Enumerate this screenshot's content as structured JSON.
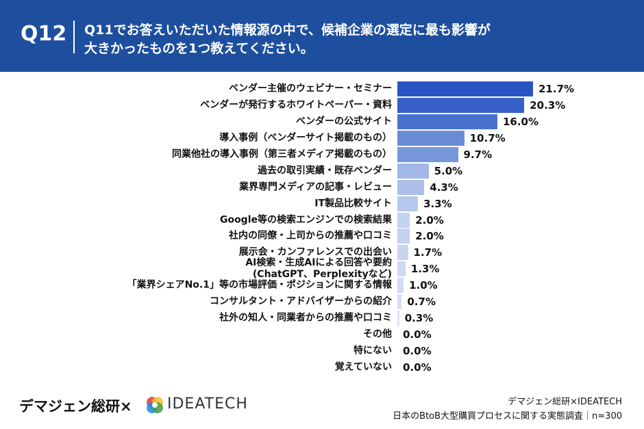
{
  "chart_data": {
    "type": "bar",
    "orientation": "horizontal",
    "question_label": "Q12",
    "title": "Q11でお答えいただいた情報源の中で、候補企業の選定に最も影響が\n大きかったものを1つ教えてください。",
    "categories": [
      "ベンダー主催のウェビナー・セミナー",
      "ベンダーが発行するホワイトペーパー・資料",
      "ベンダーの公式サイト",
      "導入事例（ベンダーサイト掲載のもの）",
      "同業他社の導入事例（第三者メディア掲載のもの）",
      "過去の取引実績・既存ベンダー",
      "業界専門メディアの記事・レビュー",
      "IT製品比較サイト",
      "Google等の検索エンジンでの検索結果",
      "社内の同僚・上司からの推薦や口コミ",
      "展示会・カンファレンスでの出会い",
      "AI検索・生成AIによる回答や要約\n(ChatGPT、Perplexityなど)",
      "「業界シェアNo.1」等の市場評価・ポジションに関する情報",
      "コンサルタント・アドバイザーからの紹介",
      "社外の知人・同業者からの推薦や口コミ",
      "その他",
      "特にない",
      "覚えていない"
    ],
    "values": [
      21.7,
      20.3,
      16.0,
      10.7,
      9.7,
      5.0,
      4.3,
      3.3,
      2.0,
      2.0,
      1.7,
      1.3,
      1.0,
      0.7,
      0.3,
      0.0,
      0.0,
      0.0
    ],
    "value_labels": [
      "21.7%",
      "20.3%",
      "16.0%",
      "10.7%",
      "9.7%",
      "5.0%",
      "4.3%",
      "3.3%",
      "2.0%",
      "2.0%",
      "1.7%",
      "1.3%",
      "1.0%",
      "0.7%",
      "0.3%",
      "0.0%",
      "0.0%",
      "0.0%"
    ],
    "colors": [
      "#2955c4",
      "#3660c7",
      "#4a71cd",
      "#6a8cd7",
      "#7697da",
      "#a2b7e6",
      "#abbfe9",
      "#b7c8ec",
      "#c3d2f0",
      "#c3d2f0",
      "#c8d5f1",
      "#ccd9f2",
      "#d1dcf3",
      "#d5e0f4",
      "#d9e3f5",
      "#dde6f6",
      "#dde6f6",
      "#dde6f6"
    ]
  },
  "footer": {
    "brand": "デマジェン総研×",
    "logo_text": "IDEATECH",
    "source_1": "デマジェン総研×IDEATECH",
    "source_2": "日本のBtoB大型購買プロセスに関する実態調査｜n=300"
  }
}
